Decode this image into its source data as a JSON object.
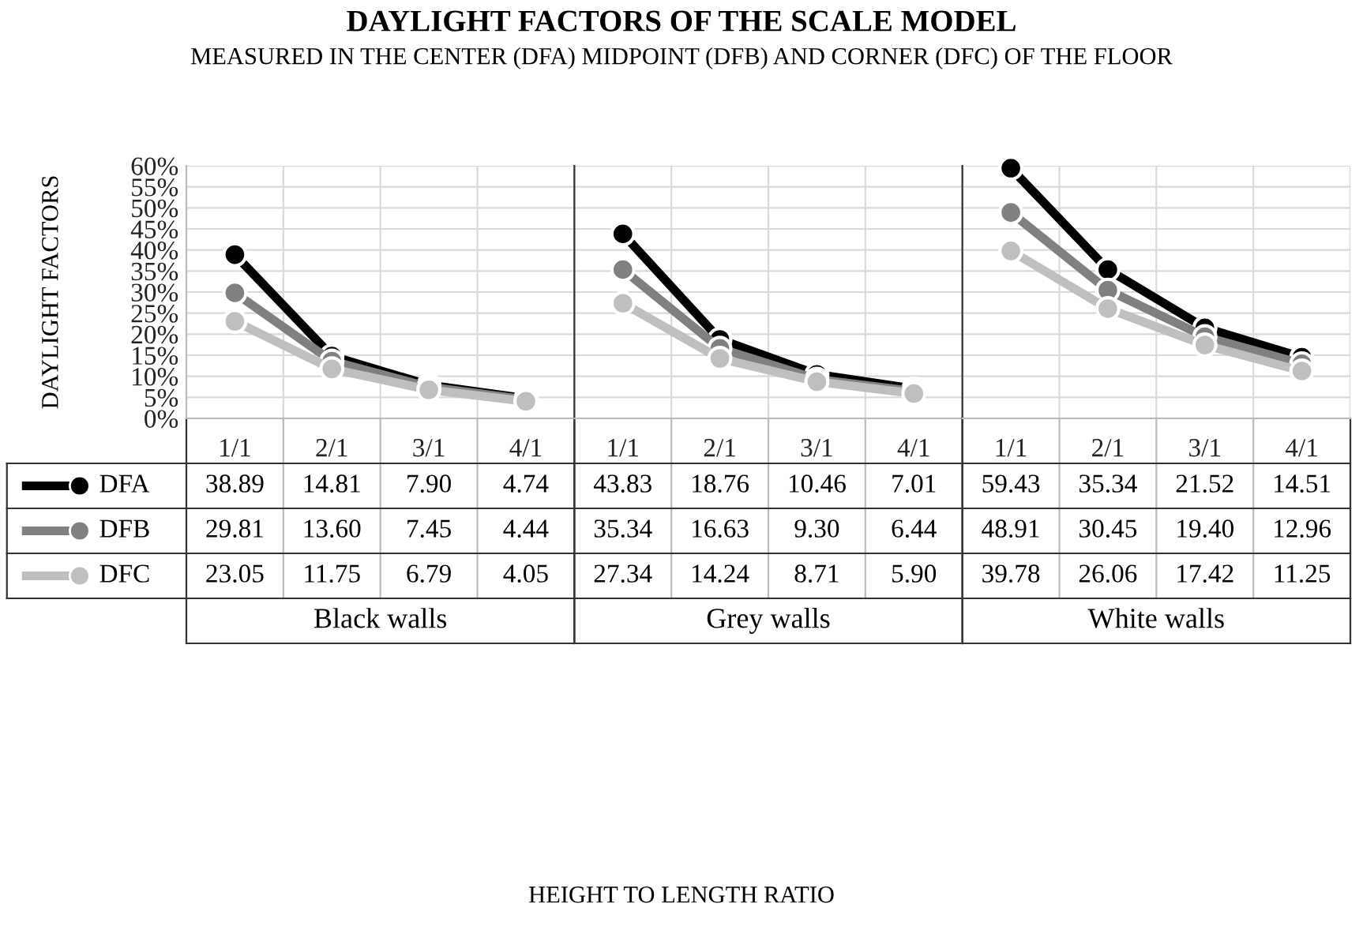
{
  "chart_data": [
    {
      "type": "line",
      "title": "DAYLIGHT FACTORS OF THE SCALE MODEL",
      "subtitle": "MEASURED IN THE CENTER (DFA) MIDPOINT (DFB) AND CORNER (DFC) OF THE FLOOR",
      "ylabel": "DAYLIGHT FACTORS",
      "categories": [
        "1/1",
        "2/1",
        "3/1",
        "4/1"
      ],
      "series": [
        {
          "name": "DFA",
          "color": "#000000",
          "values": [
            38.89,
            14.81,
            7.9,
            4.74
          ],
          "value_labels": [
            "38.89",
            "14.81",
            "7.90",
            "4.74"
          ]
        },
        {
          "name": "DFB",
          "color": "#808080",
          "values": [
            29.81,
            13.6,
            7.45,
            4.44
          ],
          "value_labels": [
            "29.81",
            "13.60",
            "7.45",
            "4.44"
          ]
        },
        {
          "name": "DFC",
          "color": "#bfbfbf",
          "values": [
            23.05,
            11.75,
            6.79,
            4.05
          ],
          "value_labels": [
            "23.05",
            "11.75",
            "6.79",
            "4.05"
          ]
        }
      ],
      "ylim": [
        0,
        60
      ],
      "yticks": [
        {
          "value": 0,
          "label": "0%"
        },
        {
          "value": 5,
          "label": "5%"
        },
        {
          "value": 10,
          "label": "10%"
        },
        {
          "value": 15,
          "label": "15%"
        },
        {
          "value": 20,
          "label": "20%"
        },
        {
          "value": 25,
          "label": "25%"
        },
        {
          "value": 30,
          "label": "30%"
        },
        {
          "value": 35,
          "label": "35%"
        },
        {
          "value": 40,
          "label": "40%"
        },
        {
          "value": 45,
          "label": "45%"
        },
        {
          "value": 50,
          "label": "50%"
        },
        {
          "value": 55,
          "label": "55%"
        },
        {
          "value": 60,
          "label": "60%"
        }
      ],
      "annotations": [
        "Black walls"
      ],
      "grid": true,
      "marker": "circle",
      "line_style": "solid",
      "legend": "bottom left"
    },
    {
      "type": "line",
      "xlabel": "HEIGHT TO LENGTH RATIO",
      "categories": [
        "1/1",
        "2/1",
        "3/1",
        "4/1"
      ],
      "series": [
        {
          "color": "#000000",
          "values": [
            43.83,
            18.76,
            10.46,
            7.01
          ],
          "value_labels": [
            "43.83",
            "18.76",
            "10.46",
            "7.01"
          ]
        },
        {
          "color": "#808080",
          "values": [
            35.34,
            16.63,
            9.3,
            6.44
          ],
          "value_labels": [
            "35.34",
            "16.63",
            "9.30",
            "6.44"
          ]
        },
        {
          "color": "#bfbfbf",
          "values": [
            27.34,
            14.24,
            8.71,
            5.9
          ],
          "value_labels": [
            "27.34",
            "14.24",
            "8.71",
            "5.90"
          ]
        }
      ],
      "ylim": [
        0,
        60
      ],
      "yticks": [
        0,
        5,
        10,
        15,
        20,
        25,
        30,
        35,
        40,
        45,
        50,
        55,
        60
      ],
      "tick_labels": "x",
      "annotations": [
        "Grey walls"
      ],
      "grid": true,
      "marker": "circle",
      "line_style": "solid"
    },
    {
      "type": "line",
      "categories": [
        "1/1",
        "2/1",
        "3/1",
        "4/1"
      ],
      "series": [
        {
          "color": "#000000",
          "values": [
            59.43,
            35.34,
            21.52,
            14.51
          ],
          "value_labels": [
            "59.43",
            "35.34",
            "21.52",
            "14.51"
          ]
        },
        {
          "color": "#808080",
          "values": [
            48.91,
            30.45,
            19.4,
            12.96
          ],
          "value_labels": [
            "48.91",
            "30.45",
            "19.40",
            "12.96"
          ]
        },
        {
          "color": "#bfbfbf",
          "values": [
            39.78,
            26.06,
            17.42,
            11.25
          ],
          "value_labels": [
            "39.78",
            "26.06",
            "17.42",
            "11.25"
          ]
        }
      ],
      "ylim": [
        0,
        60
      ],
      "yticks": [
        0,
        5,
        10,
        15,
        20,
        25,
        30,
        35,
        40,
        45,
        50,
        55,
        60
      ],
      "tick_labels": "x",
      "annotations": [
        "White walls"
      ],
      "grid": true,
      "marker": "circle",
      "line_style": "solid"
    }
  ]
}
